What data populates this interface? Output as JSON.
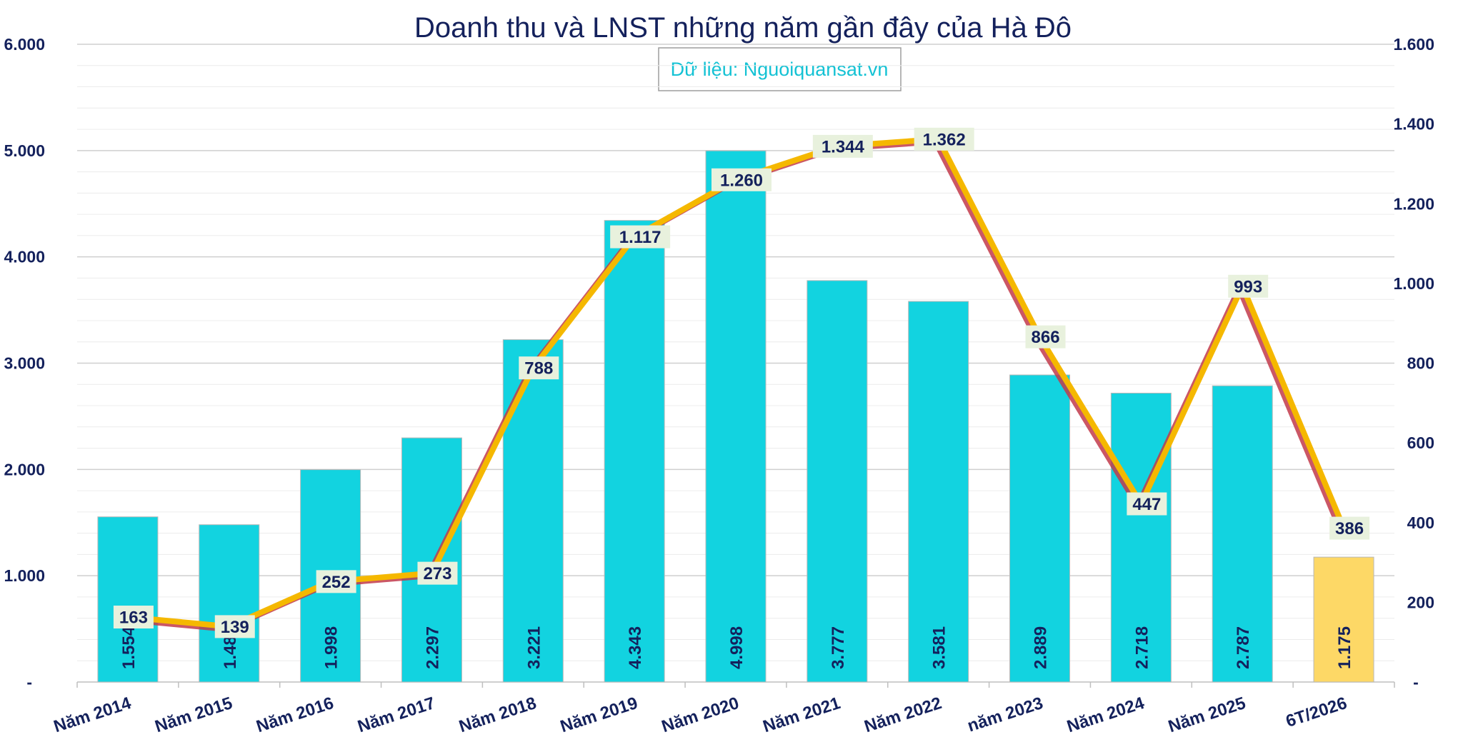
{
  "chart_data": {
    "title": "Doanh thu và LNST những năm gần đây của Hà Đô",
    "source": "Dữ liệu: Nguoiquansat.vn",
    "categories": [
      "Năm 2014",
      "Năm 2015",
      "Năm 2016",
      "Năm 2017",
      "Năm 2018",
      "Năm 2019",
      "Năm 2020",
      "Năm 2021",
      "Năm 2022",
      "năm 2023",
      "Năm 2024",
      "Năm 2025",
      "6T/2026"
    ],
    "series": [
      {
        "type": "bar",
        "axis": "left",
        "values": [
          1554,
          1480,
          1998,
          2297,
          3221,
          4343,
          4998,
          3777,
          3581,
          2889,
          2718,
          2787,
          1175
        ],
        "labels": [
          "1.554",
          "1.480",
          "1.998",
          "2.297",
          "3.221",
          "4.343",
          "4.998",
          "3.777",
          "3.581",
          "2.889",
          "2.718",
          "2.787",
          "1.175"
        ],
        "color": "#12d3e0",
        "highlight_color": "#fdd866",
        "highlight_index": 12
      },
      {
        "type": "line",
        "axis": "right",
        "values": [
          163,
          139,
          252,
          273,
          788,
          1117,
          1260,
          1344,
          1362,
          866,
          447,
          993,
          386
        ],
        "labels": [
          "163",
          "139",
          "252",
          "273",
          "788",
          "1.117",
          "1.260",
          "1.344",
          "1.362",
          "866",
          "447",
          "993",
          "386"
        ],
        "color": "#f5b800",
        "shadow_color": "#c23a4a"
      }
    ],
    "y_left": {
      "min": 0,
      "max": 6000,
      "ticks": [
        "-",
        "1.000",
        "2.000",
        "3.000",
        "4.000",
        "5.000",
        "6.000"
      ]
    },
    "y_right": {
      "min": 0,
      "max": 1600,
      "ticks": [
        "-",
        "200",
        "400",
        "600",
        "800",
        "1.000",
        "1.200",
        "1.400",
        "1.600"
      ]
    },
    "grid": true,
    "colors": {
      "text": "#14215c",
      "source": "#14c2d4",
      "grid": "#d9d9d9"
    }
  }
}
